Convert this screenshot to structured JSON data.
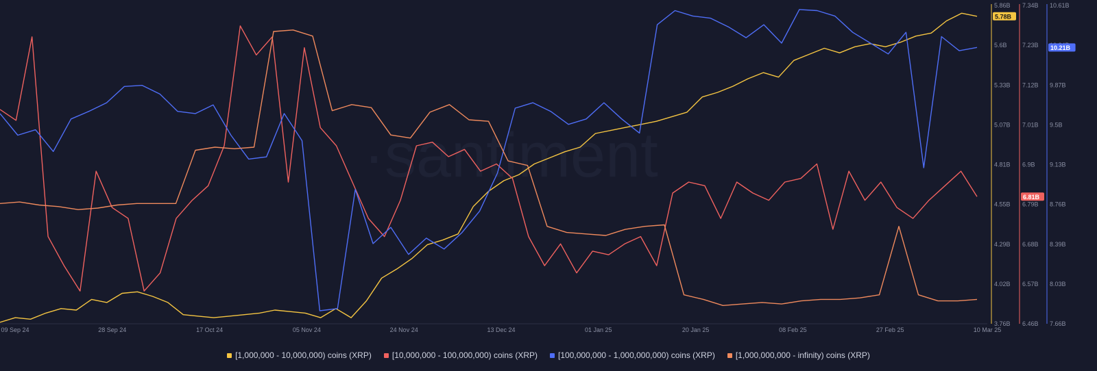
{
  "watermark": "·santiment",
  "chart_data": {
    "type": "line",
    "x_tick_labels": [
      "09 Sep 24",
      "28 Sep 24",
      "17 Oct 24",
      "05 Nov 24",
      "24 Nov 24",
      "13 Dec 24",
      "01 Jan 25",
      "20 Jan 25",
      "08 Feb 25",
      "27 Feb 25",
      "10 Mar 25"
    ],
    "axes": [
      {
        "id": "a1",
        "color": "#f5c542",
        "ylim": [
          3.76,
          5.86
        ],
        "ticks": [
          "5.86B",
          "5.6B",
          "5.33B",
          "5.07B",
          "4.81B",
          "4.55B",
          "4.29B",
          "4.02B",
          "3.76B"
        ],
        "current": "5.78B"
      },
      {
        "id": "a2",
        "color": "#f0625f",
        "ylim": [
          6.46,
          7.34
        ],
        "ticks": [
          "7.34B",
          "7.23B",
          "7.12B",
          "7.01B",
          "6.9B",
          "6.79B",
          "6.68B",
          "6.57B",
          "6.46B"
        ],
        "current": "6.81B"
      },
      {
        "id": "a3",
        "color": "#4f6ef7",
        "ylim": [
          7.66,
          10.61
        ],
        "ticks": [
          "10.61B",
          "10.24B",
          "9.87B",
          "9.5B",
          "9.13B",
          "8.76B",
          "8.39B",
          "8.03B",
          "7.66B"
        ],
        "current": "10.21B"
      }
    ],
    "series": [
      {
        "name": "[1,000,000 - 10,000,000) coins (XRP)",
        "color": "#f5c542",
        "axis": "a1",
        "values": [
          3.77,
          3.8,
          3.79,
          3.83,
          3.86,
          3.85,
          3.92,
          3.9,
          3.96,
          3.97,
          3.94,
          3.9,
          3.82,
          3.81,
          3.8,
          3.81,
          3.82,
          3.83,
          3.85,
          3.84,
          3.83,
          3.8,
          3.86,
          3.8,
          3.91,
          4.06,
          4.12,
          4.19,
          4.28,
          4.31,
          4.35,
          4.53,
          4.63,
          4.7,
          4.74,
          4.81,
          4.85,
          4.89,
          4.92,
          5.01,
          5.03,
          5.05,
          5.07,
          5.09,
          5.12,
          5.15,
          5.25,
          5.28,
          5.32,
          5.37,
          5.41,
          5.38,
          5.49,
          5.53,
          5.57,
          5.54,
          5.58,
          5.6,
          5.58,
          5.61,
          5.65,
          5.67,
          5.75,
          5.8,
          5.78
        ]
      },
      {
        "name": "[10,000,000 - 100,000,000) coins (XRP)",
        "color": "#f0625f",
        "axis": "a2",
        "values": [
          7.05,
          7.02,
          7.25,
          6.7,
          6.62,
          6.55,
          6.88,
          6.78,
          6.75,
          6.55,
          6.6,
          6.75,
          6.8,
          6.84,
          6.95,
          7.28,
          7.2,
          7.25,
          6.85,
          7.22,
          7.0,
          6.95,
          6.85,
          6.75,
          6.7,
          6.8,
          6.95,
          6.96,
          6.92,
          6.94,
          6.88,
          6.9,
          6.86,
          6.7,
          6.62,
          6.68,
          6.6,
          6.66,
          6.65,
          6.68,
          6.7,
          6.62,
          6.82,
          6.85,
          6.84,
          6.75,
          6.85,
          6.82,
          6.8,
          6.85,
          6.86,
          6.9,
          6.72,
          6.88,
          6.8,
          6.85,
          6.78,
          6.75,
          6.8,
          6.84,
          6.88,
          6.81
        ]
      },
      {
        "name": "[100,000,000 - 1,000,000,000) coins (XRP)",
        "color": "#4f6ef7",
        "axis": "a3",
        "values": [
          9.6,
          9.4,
          9.45,
          9.25,
          9.55,
          9.62,
          9.7,
          9.85,
          9.86,
          9.78,
          9.62,
          9.6,
          9.68,
          9.4,
          9.18,
          9.2,
          9.6,
          9.35,
          7.78,
          7.8,
          8.9,
          8.4,
          8.55,
          8.3,
          8.45,
          8.35,
          8.5,
          8.7,
          9.05,
          9.65,
          9.7,
          9.62,
          9.5,
          9.55,
          9.7,
          9.55,
          9.42,
          10.42,
          10.55,
          10.5,
          10.48,
          10.4,
          10.3,
          10.42,
          10.25,
          10.56,
          10.55,
          10.5,
          10.35,
          10.25,
          10.15,
          10.35,
          9.1,
          10.31,
          10.18,
          10.21
        ]
      },
      {
        "name": "[1,000,000,000 - infinity) coins (XRP)",
        "color": "#f08a5d",
        "axis": "a1",
        "values": [
          4.55,
          4.56,
          4.54,
          4.53,
          4.51,
          4.52,
          4.54,
          4.55,
          4.55,
          4.55,
          4.9,
          4.92,
          4.91,
          4.92,
          5.68,
          5.69,
          5.65,
          5.16,
          5.2,
          5.18,
          5.0,
          4.98,
          5.15,
          5.2,
          5.1,
          5.09,
          4.83,
          4.8,
          4.4,
          4.36,
          4.35,
          4.34,
          4.38,
          4.4,
          4.41,
          3.95,
          3.92,
          3.88,
          3.89,
          3.9,
          3.89,
          3.91,
          3.92,
          3.92,
          3.93,
          3.95,
          4.4,
          3.95,
          3.91,
          3.91,
          3.92
        ]
      }
    ]
  }
}
